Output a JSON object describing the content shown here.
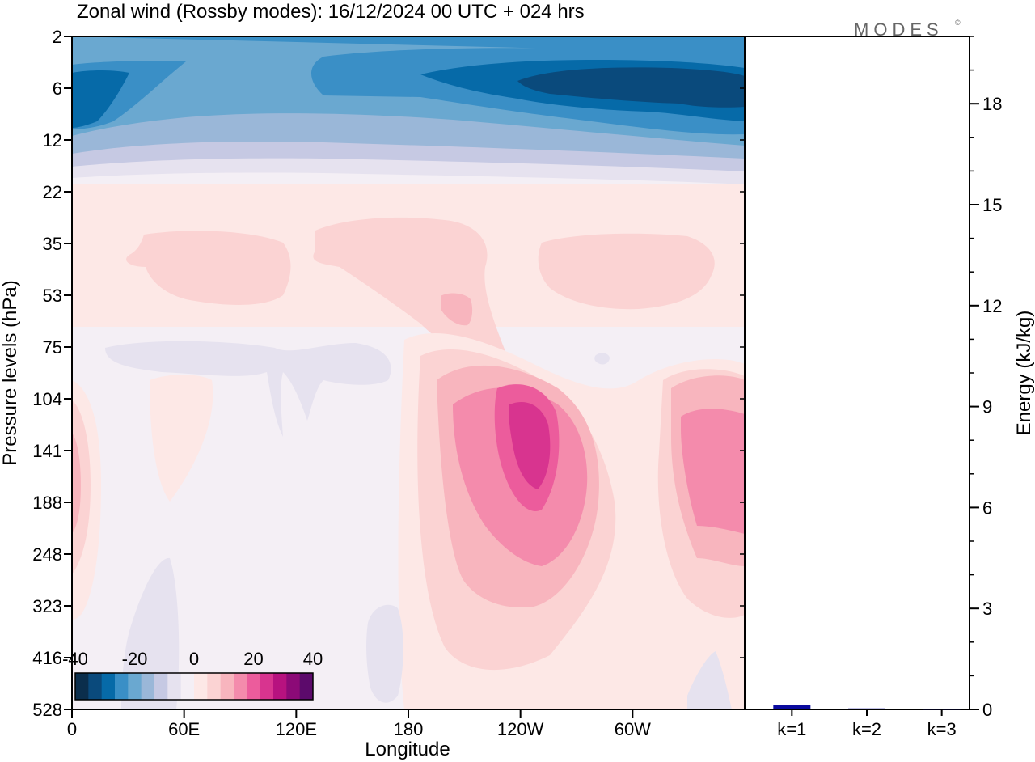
{
  "title": "Zonal wind (Rossby modes):  16/12/2024  00 UTC  + 024 hrs",
  "logo": {
    "text": "MODES",
    "mark": "©"
  },
  "chart_data": [
    {
      "type": "heatmap",
      "title": "Zonal wind (Rossby modes):  16/12/2024  00 UTC  + 024 hrs",
      "xlabel": "Longitude",
      "ylabel": "Pressure levels (hPa)",
      "x_ticks": [
        "0",
        "60E",
        "120E",
        "180",
        "120W",
        "60W"
      ],
      "y_ticks": [
        "2",
        "6",
        "12",
        "22",
        "35",
        "53",
        "75",
        "104",
        "141",
        "188",
        "248",
        "323",
        "416",
        "528"
      ],
      "y_scale": "log",
      "colorbar": {
        "ticks": [
          "-40",
          "-20",
          "0",
          "20",
          "40"
        ],
        "range": [
          -40,
          40
        ],
        "colors": [
          "#0b2e4c",
          "#0a4a7c",
          "#066aa8",
          "#3a8fc6",
          "#6aa8d0",
          "#9ab7d8",
          "#c6c9e3",
          "#e6e2ef",
          "#f4eff5",
          "#fde8e6",
          "#fbd3d3",
          "#f8b5be",
          "#f48bac",
          "#ec5c9c",
          "#d8348f",
          "#b7127f",
          "#8c0a77",
          "#5c0a6b"
        ]
      }
    },
    {
      "type": "bar",
      "ylabel": "Energy (kJ/kg)",
      "categories": [
        "k=1",
        "k=2",
        "k=3"
      ],
      "values": [
        0.12,
        0.03,
        0.02
      ],
      "ylim": [
        0,
        20
      ],
      "y_ticks": [
        "0",
        "3",
        "6",
        "9",
        "12",
        "15",
        "18"
      ],
      "bar_color": "#0a0a9e"
    }
  ]
}
